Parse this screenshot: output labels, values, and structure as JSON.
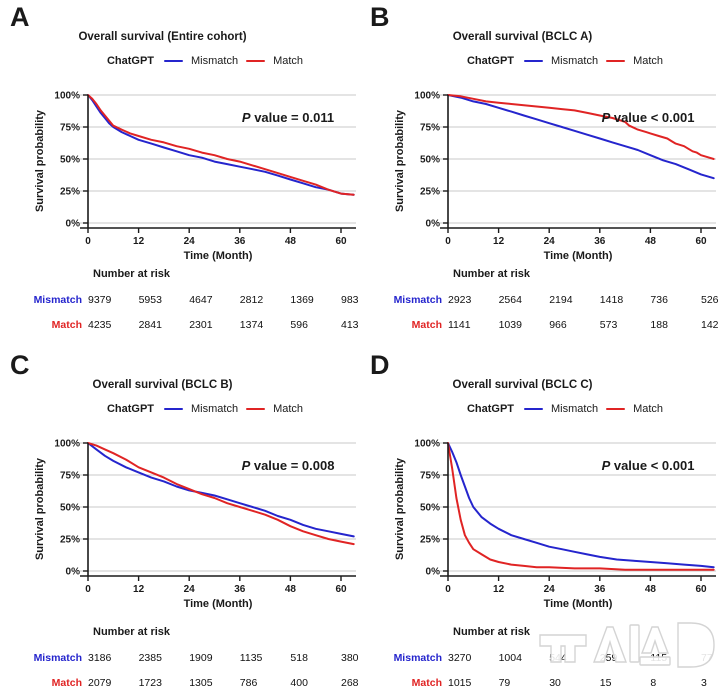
{
  "colors": {
    "mismatch": "#2525cd",
    "match": "#e02424",
    "grid": "#c9c9c9",
    "axis": "#1a1a1a"
  },
  "legend": {
    "group_label": "ChatGPT",
    "mismatch": "Mismatch",
    "match": "Match"
  },
  "risk_header": "Number at risk",
  "watermark": {
    "label": "뉴시스"
  },
  "axes": {
    "y_label": "Survival probability",
    "x_label": "Time (Month)",
    "y_ticks": [
      "100%",
      "75%",
      "50%",
      "25%",
      "0%"
    ],
    "x_ticks": [
      "0",
      "12",
      "24",
      "36",
      "48",
      "60"
    ],
    "ylim": [
      0,
      100
    ],
    "xlim": [
      0,
      63
    ]
  },
  "chart_data": [
    {
      "type": "line",
      "panel_letter": "A",
      "title": "Overall survival (Entire cohort)",
      "p_prefix": "P",
      "p_text": " value = 0.011",
      "xlabel": "Time (Month)",
      "ylabel": "Survival probability",
      "x_ticks": [
        0,
        12,
        24,
        36,
        48,
        60
      ],
      "y_ticks": [
        "100%",
        "75%",
        "50%",
        "25%",
        "0%"
      ],
      "series": [
        {
          "name": "Mismatch",
          "color_key": "mismatch",
          "points": [
            [
              0,
              100
            ],
            [
              1,
              96
            ],
            [
              2,
              91
            ],
            [
              3,
              86
            ],
            [
              4,
              82
            ],
            [
              5,
              78
            ],
            [
              6,
              75
            ],
            [
              8,
              71
            ],
            [
              10,
              68
            ],
            [
              12,
              65
            ],
            [
              15,
              62
            ],
            [
              18,
              59
            ],
            [
              21,
              56
            ],
            [
              24,
              53
            ],
            [
              27,
              51
            ],
            [
              30,
              48
            ],
            [
              33,
              46
            ],
            [
              36,
              44
            ],
            [
              39,
              42
            ],
            [
              42,
              40
            ],
            [
              45,
              37
            ],
            [
              48,
              34
            ],
            [
              51,
              31
            ],
            [
              54,
              28
            ],
            [
              57,
              26
            ],
            [
              60,
              23
            ],
            [
              63,
              22
            ]
          ]
        },
        {
          "name": "Match",
          "color_key": "match",
          "points": [
            [
              0,
              100
            ],
            [
              1,
              97
            ],
            [
              2,
              93
            ],
            [
              3,
              88
            ],
            [
              4,
              84
            ],
            [
              5,
              80
            ],
            [
              6,
              76
            ],
            [
              8,
              73
            ],
            [
              10,
              70
            ],
            [
              12,
              68
            ],
            [
              15,
              65
            ],
            [
              18,
              63
            ],
            [
              21,
              60
            ],
            [
              24,
              58
            ],
            [
              27,
              55
            ],
            [
              30,
              53
            ],
            [
              33,
              50
            ],
            [
              36,
              48
            ],
            [
              39,
              45
            ],
            [
              42,
              42
            ],
            [
              45,
              39
            ],
            [
              48,
              36
            ],
            [
              51,
              33
            ],
            [
              54,
              30
            ],
            [
              57,
              26
            ],
            [
              60,
              23
            ],
            [
              63,
              22
            ]
          ]
        }
      ],
      "risk": {
        "mismatch": [
          "9379",
          "5953",
          "4647",
          "2812",
          "1369",
          "983"
        ],
        "match": [
          "4235",
          "2841",
          "2301",
          "1374",
          "596",
          "413"
        ]
      }
    },
    {
      "type": "line",
      "panel_letter": "B",
      "title": "Overall survival (BCLC A)",
      "p_prefix": "P",
      "p_text": " value < 0.001",
      "xlabel": "Time (Month)",
      "ylabel": "Survival probability",
      "x_ticks": [
        0,
        12,
        24,
        36,
        48,
        60
      ],
      "y_ticks": [
        "100%",
        "75%",
        "50%",
        "25%",
        "0%"
      ],
      "series": [
        {
          "name": "Mismatch",
          "color_key": "mismatch",
          "points": [
            [
              0,
              100
            ],
            [
              3,
              98
            ],
            [
              6,
              95
            ],
            [
              9,
              93
            ],
            [
              12,
              90
            ],
            [
              15,
              87
            ],
            [
              18,
              84
            ],
            [
              21,
              81
            ],
            [
              24,
              78
            ],
            [
              27,
              75
            ],
            [
              30,
              72
            ],
            [
              33,
              69
            ],
            [
              36,
              66
            ],
            [
              39,
              63
            ],
            [
              42,
              60
            ],
            [
              45,
              57
            ],
            [
              48,
              53
            ],
            [
              51,
              49
            ],
            [
              54,
              46
            ],
            [
              57,
              42
            ],
            [
              60,
              38
            ],
            [
              63,
              35
            ]
          ]
        },
        {
          "name": "Match",
          "color_key": "match",
          "points": [
            [
              0,
              100
            ],
            [
              3,
              99
            ],
            [
              6,
              97
            ],
            [
              9,
              95
            ],
            [
              12,
              94
            ],
            [
              15,
              93
            ],
            [
              18,
              92
            ],
            [
              21,
              91
            ],
            [
              24,
              90
            ],
            [
              27,
              89
            ],
            [
              30,
              88
            ],
            [
              33,
              86
            ],
            [
              36,
              84
            ],
            [
              39,
              82
            ],
            [
              41,
              80
            ],
            [
              42,
              79
            ],
            [
              43,
              76
            ],
            [
              45,
              73
            ],
            [
              47,
              71
            ],
            [
              48,
              70
            ],
            [
              50,
              68
            ],
            [
              52,
              66
            ],
            [
              53,
              64
            ],
            [
              54,
              62
            ],
            [
              56,
              60
            ],
            [
              57,
              58
            ],
            [
              58,
              56
            ],
            [
              59,
              55
            ],
            [
              60,
              53
            ],
            [
              62,
              51
            ],
            [
              63,
              50
            ]
          ]
        }
      ],
      "risk": {
        "mismatch": [
          "2923",
          "2564",
          "2194",
          "1418",
          "736",
          "526"
        ],
        "match": [
          "1141",
          "1039",
          "966",
          "573",
          "188",
          "142"
        ]
      }
    },
    {
      "type": "line",
      "panel_letter": "C",
      "title": "Overall survival (BCLC B)",
      "p_prefix": "P",
      "p_text": " value = 0.008",
      "xlabel": "Time (Month)",
      "ylabel": "Survival probability",
      "x_ticks": [
        0,
        12,
        24,
        36,
        48,
        60
      ],
      "y_ticks": [
        "100%",
        "75%",
        "50%",
        "25%",
        "0%"
      ],
      "series": [
        {
          "name": "Mismatch",
          "color_key": "mismatch",
          "points": [
            [
              0,
              100
            ],
            [
              2,
              95
            ],
            [
              4,
              90
            ],
            [
              6,
              86
            ],
            [
              9,
              81
            ],
            [
              12,
              77
            ],
            [
              15,
              73
            ],
            [
              18,
              70
            ],
            [
              21,
              66
            ],
            [
              24,
              63
            ],
            [
              27,
              61
            ],
            [
              30,
              59
            ],
            [
              33,
              56
            ],
            [
              36,
              53
            ],
            [
              39,
              50
            ],
            [
              42,
              47
            ],
            [
              45,
              43
            ],
            [
              48,
              40
            ],
            [
              51,
              36
            ],
            [
              54,
              33
            ],
            [
              57,
              31
            ],
            [
              60,
              29
            ],
            [
              63,
              27
            ]
          ]
        },
        {
          "name": "Match",
          "color_key": "match",
          "points": [
            [
              0,
              100
            ],
            [
              2,
              98
            ],
            [
              4,
              95
            ],
            [
              6,
              92
            ],
            [
              9,
              87
            ],
            [
              12,
              81
            ],
            [
              15,
              77
            ],
            [
              18,
              73
            ],
            [
              21,
              68
            ],
            [
              24,
              64
            ],
            [
              27,
              60
            ],
            [
              30,
              57
            ],
            [
              33,
              53
            ],
            [
              36,
              50
            ],
            [
              39,
              47
            ],
            [
              42,
              44
            ],
            [
              45,
              40
            ],
            [
              48,
              35
            ],
            [
              51,
              31
            ],
            [
              54,
              28
            ],
            [
              57,
              25
            ],
            [
              60,
              23
            ],
            [
              63,
              21
            ]
          ]
        }
      ],
      "risk": {
        "mismatch": [
          "3186",
          "2385",
          "1909",
          "1135",
          "518",
          "380"
        ],
        "match": [
          "2079",
          "1723",
          "1305",
          "786",
          "400",
          "268"
        ]
      }
    },
    {
      "type": "line",
      "panel_letter": "D",
      "title": "Overall survival (BCLC C)",
      "p_prefix": "P",
      "p_text": " value < 0.001",
      "xlabel": "Time (Month)",
      "ylabel": "Survival probability",
      "x_ticks": [
        0,
        12,
        24,
        36,
        48,
        60
      ],
      "y_ticks": [
        "100%",
        "75%",
        "50%",
        "25%",
        "0%"
      ],
      "series": [
        {
          "name": "Mismatch",
          "color_key": "mismatch",
          "points": [
            [
              0,
              100
            ],
            [
              1,
              93
            ],
            [
              2,
              85
            ],
            [
              3,
              75
            ],
            [
              4,
              66
            ],
            [
              5,
              57
            ],
            [
              6,
              50
            ],
            [
              7,
              46
            ],
            [
              8,
              42
            ],
            [
              10,
              37
            ],
            [
              12,
              33
            ],
            [
              15,
              28
            ],
            [
              18,
              25
            ],
            [
              21,
              22
            ],
            [
              24,
              19
            ],
            [
              27,
              17
            ],
            [
              30,
              15
            ],
            [
              33,
              13
            ],
            [
              36,
              11
            ],
            [
              40,
              9
            ],
            [
              44,
              8
            ],
            [
              48,
              7
            ],
            [
              52,
              6
            ],
            [
              56,
              5
            ],
            [
              60,
              4
            ],
            [
              63,
              3
            ]
          ]
        },
        {
          "name": "Match",
          "color_key": "match",
          "points": [
            [
              0,
              100
            ],
            [
              1,
              80
            ],
            [
              2,
              57
            ],
            [
              3,
              40
            ],
            [
              4,
              28
            ],
            [
              5,
              22
            ],
            [
              6,
              17
            ],
            [
              8,
              13
            ],
            [
              10,
              9
            ],
            [
              12,
              7
            ],
            [
              15,
              5
            ],
            [
              18,
              4
            ],
            [
              21,
              3
            ],
            [
              24,
              3
            ],
            [
              30,
              2
            ],
            [
              36,
              2
            ],
            [
              42,
              1
            ],
            [
              48,
              1
            ],
            [
              54,
              1
            ],
            [
              60,
              1
            ],
            [
              63,
              1
            ]
          ]
        }
      ],
      "risk": {
        "mismatch": [
          "3270",
          "1004",
          "544",
          "259",
          "115",
          "77"
        ],
        "match": [
          "1015",
          "79",
          "30",
          "15",
          "8",
          "3"
        ]
      }
    }
  ]
}
